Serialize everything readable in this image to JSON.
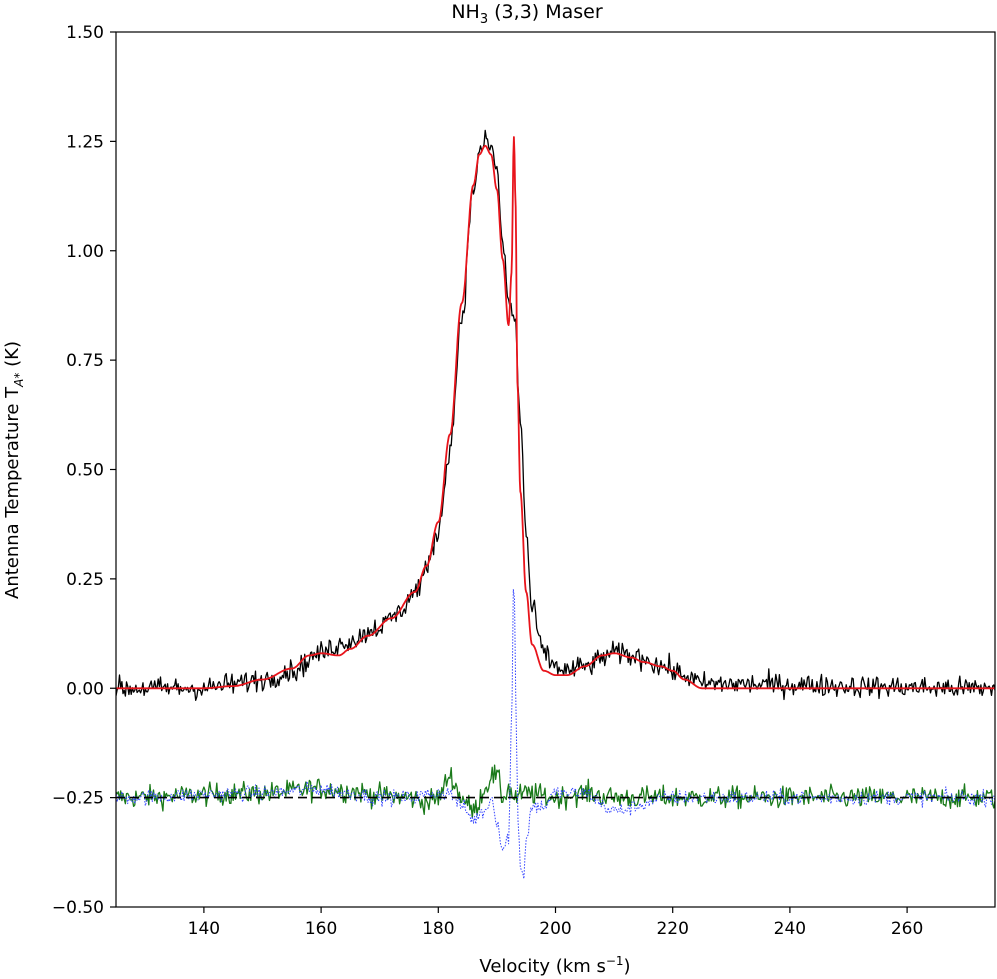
{
  "chart_data": {
    "type": "line",
    "title": {
      "main": "NH",
      "sub": "3",
      "rest": " (3,3) Maser"
    },
    "xlabel": {
      "main": "Velocity (km s",
      "sup": "−1",
      "rest": ")"
    },
    "ylabel": {
      "main": "Antenna Temperature T",
      "sub": "A*",
      "rest": " (K)"
    },
    "xlim": [
      125,
      275
    ],
    "ylim": [
      -0.5,
      1.5
    ],
    "x_ticks": [
      140,
      160,
      180,
      200,
      220,
      240,
      260
    ],
    "x_tick_labels": [
      "140",
      "160",
      "180",
      "200",
      "220",
      "240",
      "260"
    ],
    "y_ticks": [
      -0.5,
      -0.25,
      0.0,
      0.25,
      0.5,
      0.75,
      1.0,
      1.25,
      1.5
    ],
    "y_tick_labels": [
      "−0.50",
      "−0.25",
      "0.00",
      "0.25",
      "0.50",
      "0.75",
      "1.00",
      "1.25",
      "1.50"
    ],
    "grid": false,
    "legend": "none",
    "colors": {
      "data": "#000000",
      "model": "#e8141b",
      "residual": "#1a7a1a",
      "maser_component": "#3040ff",
      "baseline": "#000000"
    },
    "series": [
      {
        "id": "data",
        "style": "solid",
        "noise": 0.018,
        "x": [
          125,
          140,
          145,
          150,
          155,
          160,
          163,
          165,
          170,
          173,
          176,
          178,
          180,
          182,
          184,
          186,
          187,
          188,
          189,
          190,
          191,
          192,
          193,
          194,
          195,
          196,
          198,
          200,
          202,
          205,
          210,
          215,
          218,
          222,
          225,
          275
        ],
        "y": [
          0.0,
          0.0,
          0.01,
          0.02,
          0.04,
          0.08,
          0.1,
          0.11,
          0.14,
          0.17,
          0.22,
          0.27,
          0.36,
          0.55,
          0.85,
          1.14,
          1.22,
          1.25,
          1.24,
          1.18,
          1.02,
          0.88,
          0.85,
          0.62,
          0.35,
          0.18,
          0.08,
          0.05,
          0.04,
          0.05,
          0.08,
          0.07,
          0.05,
          0.03,
          0.01,
          0.0
        ]
      },
      {
        "id": "model",
        "style": "solid",
        "x": [
          125,
          140,
          145,
          150,
          155,
          158,
          160,
          163,
          165,
          168,
          172,
          176,
          178,
          180,
          182,
          184,
          186,
          187,
          188,
          189,
          190,
          191,
          192,
          192.5,
          192.9,
          193.2,
          193.5,
          194,
          195,
          196,
          198,
          200,
          202,
          205,
          208,
          210,
          213,
          215,
          218,
          220,
          222,
          225,
          275
        ],
        "y": [
          0.0,
          0.0,
          0.005,
          0.02,
          0.045,
          0.075,
          0.08,
          0.075,
          0.09,
          0.12,
          0.16,
          0.22,
          0.28,
          0.38,
          0.58,
          0.88,
          1.15,
          1.22,
          1.24,
          1.22,
          1.14,
          0.98,
          0.83,
          0.95,
          1.26,
          1.1,
          0.7,
          0.45,
          0.22,
          0.1,
          0.04,
          0.03,
          0.03,
          0.05,
          0.075,
          0.08,
          0.07,
          0.06,
          0.05,
          0.04,
          0.02,
          0.0,
          0.0
        ]
      },
      {
        "id": "maser_component",
        "style": "dotted",
        "x": [
          125,
          150,
          160,
          165,
          170,
          175,
          180,
          182,
          184,
          186,
          188,
          189,
          190,
          191,
          192,
          192.5,
          192.9,
          193.2,
          193.6,
          194,
          194.5,
          195,
          196,
          198,
          200,
          205,
          210,
          220,
          275
        ],
        "y": [
          -0.25,
          -0.24,
          -0.23,
          -0.24,
          -0.25,
          -0.25,
          -0.24,
          -0.24,
          -0.27,
          -0.3,
          -0.28,
          -0.25,
          -0.3,
          -0.37,
          -0.34,
          -0.08,
          0.27,
          0.0,
          -0.3,
          -0.4,
          -0.43,
          -0.35,
          -0.27,
          -0.27,
          -0.24,
          -0.24,
          -0.28,
          -0.25,
          -0.25
        ],
        "noise": 0.012
      },
      {
        "id": "residual",
        "style": "solid",
        "noise": 0.018,
        "x": [
          125,
          150,
          160,
          165,
          170,
          175,
          178,
          180,
          182,
          184,
          186,
          188,
          189,
          190,
          191,
          192,
          193,
          195,
          200,
          205,
          210,
          220,
          275
        ],
        "y": [
          -0.25,
          -0.24,
          -0.23,
          -0.235,
          -0.245,
          -0.25,
          -0.26,
          -0.25,
          -0.2,
          -0.25,
          -0.28,
          -0.23,
          -0.2,
          -0.2,
          -0.25,
          -0.23,
          -0.25,
          -0.24,
          -0.25,
          -0.24,
          -0.25,
          -0.25,
          -0.25
        ]
      },
      {
        "id": "baseline",
        "style": "dashed",
        "x": [
          125,
          275
        ],
        "y": [
          -0.25,
          -0.25
        ]
      }
    ]
  }
}
